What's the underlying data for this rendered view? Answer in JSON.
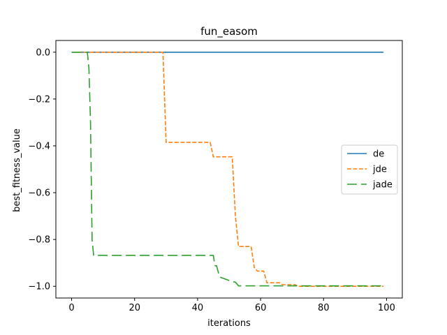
{
  "chart_data": {
    "type": "line",
    "title": "fun_easom",
    "xlabel": "iterations",
    "ylabel": "best_fitness_value",
    "xlim": [
      -5,
      105
    ],
    "ylim": [
      -1.05,
      0.05
    ],
    "xticks": [
      0,
      20,
      40,
      60,
      80,
      100
    ],
    "yticks": [
      0.0,
      -0.2,
      -0.4,
      -0.6,
      -0.8,
      -1.0
    ],
    "xtick_labels": [
      "0",
      "20",
      "40",
      "60",
      "80",
      "100"
    ],
    "ytick_labels": [
      "0.0",
      "−0.2",
      "−0.4",
      "−0.6",
      "−0.8",
      "−1.0"
    ],
    "grid": false,
    "legend_position": "center-right",
    "series": [
      {
        "name": "de",
        "color": "#1f77b4",
        "style": "solid",
        "points": [
          [
            0,
            0.0
          ],
          [
            99,
            0.0
          ]
        ]
      },
      {
        "name": "jde",
        "color": "#ff7f0e",
        "style": "dashed",
        "points": [
          [
            0,
            0.0
          ],
          [
            29,
            0.0
          ],
          [
            30,
            -0.385
          ],
          [
            44,
            -0.385
          ],
          [
            45,
            -0.447
          ],
          [
            51,
            -0.447
          ],
          [
            52,
            -0.7
          ],
          [
            53,
            -0.83
          ],
          [
            57,
            -0.83
          ],
          [
            58,
            -0.92
          ],
          [
            59,
            -0.935
          ],
          [
            61,
            -0.935
          ],
          [
            62,
            -0.985
          ],
          [
            66,
            -0.985
          ],
          [
            67,
            -0.993
          ],
          [
            71,
            -0.993
          ],
          [
            72,
            -1.0
          ],
          [
            99,
            -1.0
          ]
        ]
      },
      {
        "name": "jade",
        "color": "#2ca02c",
        "style": "longdash",
        "points": [
          [
            0,
            0.0
          ],
          [
            5,
            0.0
          ],
          [
            5.5,
            -0.07
          ],
          [
            6,
            -0.3
          ],
          [
            6.5,
            -0.8
          ],
          [
            7,
            -0.868
          ],
          [
            45,
            -0.868
          ],
          [
            45.5,
            -0.912
          ],
          [
            46,
            -0.912
          ],
          [
            47,
            -0.96
          ],
          [
            51,
            -0.98
          ],
          [
            52,
            -0.982
          ],
          [
            53,
            -0.998
          ],
          [
            99,
            -0.998
          ]
        ]
      }
    ]
  }
}
